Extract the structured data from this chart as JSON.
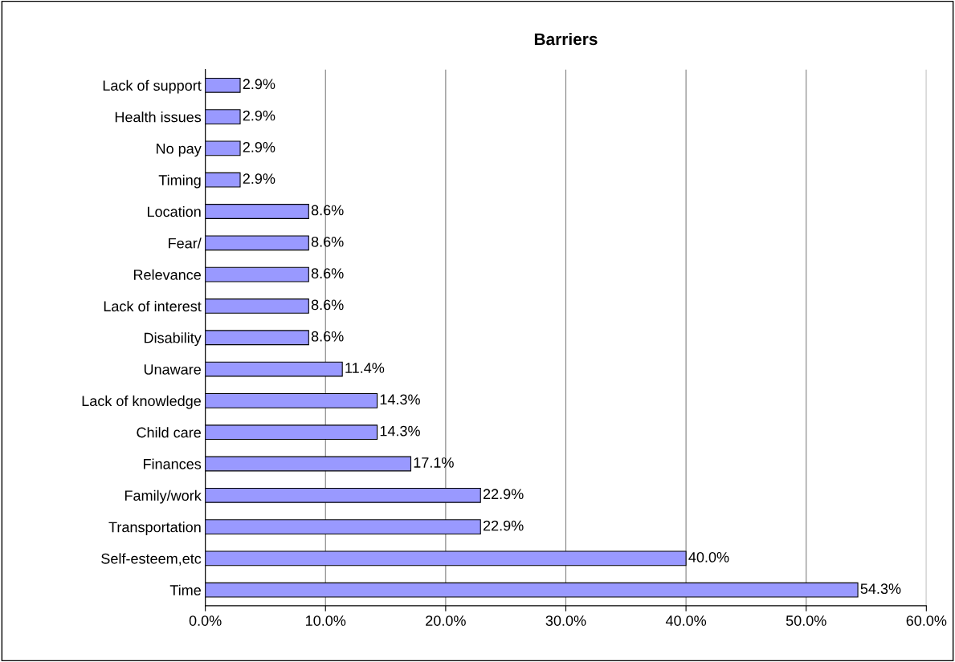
{
  "chart_data": {
    "type": "bar",
    "orientation": "horizontal",
    "title": "Barriers",
    "categories": [
      "Lack of support",
      "Health issues",
      "No pay",
      "Timing",
      "Location",
      "Fear/",
      "Relevance",
      "Lack of interest",
      "Disability",
      "Unaware",
      "Lack of knowledge",
      "Child care",
      "Finances",
      "Family/work",
      "Transportation",
      "Self-esteem,etc",
      "Time"
    ],
    "values": [
      2.9,
      2.9,
      2.9,
      2.9,
      8.6,
      8.6,
      8.6,
      8.6,
      8.6,
      11.4,
      14.3,
      14.3,
      17.1,
      22.9,
      22.9,
      40.0,
      54.3
    ],
    "value_labels": [
      "2.9%",
      "2.9%",
      "2.9%",
      "2.9%",
      "8.6%",
      "8.6%",
      "8.6%",
      "8.6%",
      "8.6%",
      "11.4%",
      "14.3%",
      "14.3%",
      "17.1%",
      "22.9%",
      "22.9%",
      "40.0%",
      "54.3%"
    ],
    "color": "#9999ff",
    "xlim": [
      0,
      60
    ],
    "xticks": [
      {
        "value": 0,
        "label": "0.0%"
      },
      {
        "value": 10,
        "label": "10.0%"
      },
      {
        "value": 20,
        "label": "20.0%"
      },
      {
        "value": 30,
        "label": "30.0%"
      },
      {
        "value": 40,
        "label": "40.0%"
      },
      {
        "value": 50,
        "label": "50.0%"
      },
      {
        "value": 60,
        "label": "60.0%"
      }
    ],
    "grid": "x"
  }
}
